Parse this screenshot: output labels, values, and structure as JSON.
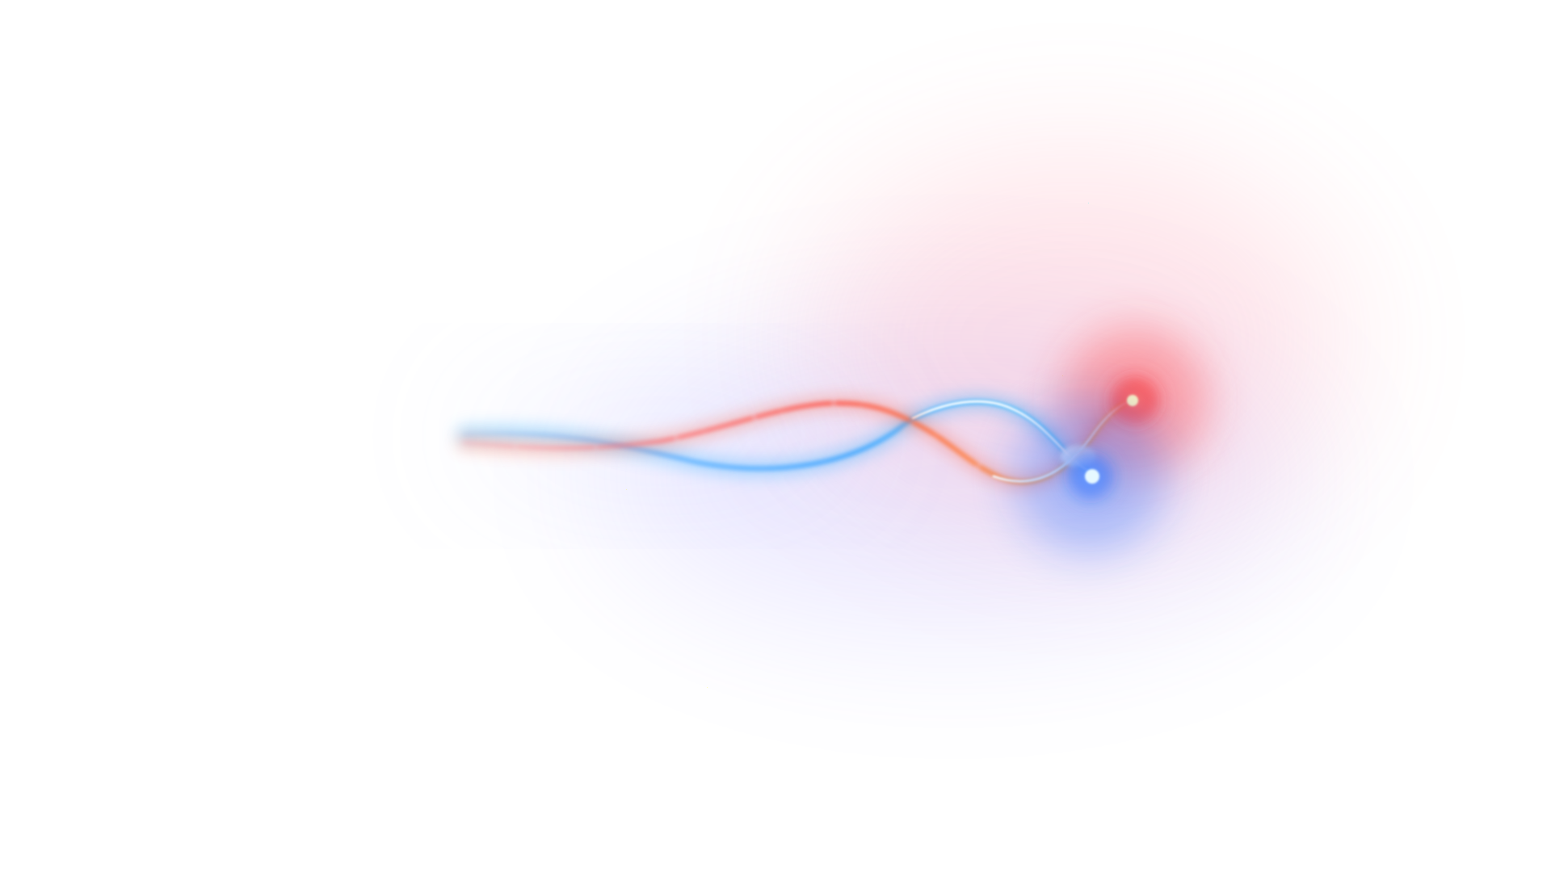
{
  "scene": {
    "background": "#ffffff",
    "colors": {
      "red_core": "#ff2a2a",
      "red_haze": "#ff6f8a",
      "orange_trail": "#ff7a3a",
      "blue_core": "#1e6bff",
      "blue_haze": "#8a7dff",
      "cyan_trail": "#3fb6ff",
      "white_highlight": "#ffffff"
    },
    "elements": [
      "red-glow-orb",
      "blue-glow-orb",
      "red-light-trail",
      "blue-light-trail",
      "pink-haze",
      "violet-haze"
    ]
  }
}
